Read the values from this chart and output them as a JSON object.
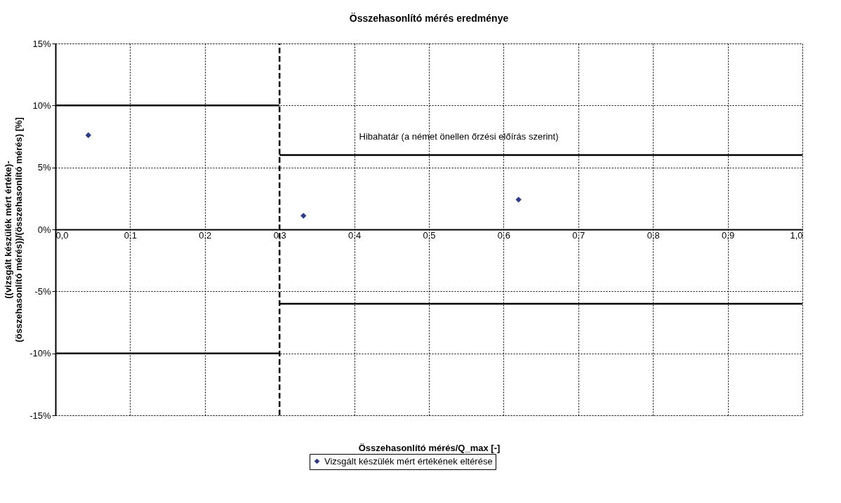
{
  "chart_data": {
    "type": "scatter",
    "title": "Összehasonlító mérés eredménye",
    "xlabel": "Összehasonlító mérés/Q_max [-]",
    "ylabel": "((vizsgált készülék mért értéke)-\n(összehasonlító mérés))/(összehasonlító mérés) [%]",
    "xlim": [
      0,
      1
    ],
    "xticks": [
      {
        "value": 0,
        "label": "0,0"
      },
      {
        "value": 0.1,
        "label": "0,1"
      },
      {
        "value": 0.2,
        "label": "0,2"
      },
      {
        "value": 0.3,
        "label": "0,3"
      },
      {
        "value": 0.4,
        "label": "0,4"
      },
      {
        "value": 0.5,
        "label": "0,5"
      },
      {
        "value": 0.6,
        "label": "0,6"
      },
      {
        "value": 0.7,
        "label": "0,7"
      },
      {
        "value": 0.8,
        "label": "0,8"
      },
      {
        "value": 0.9,
        "label": "0,9"
      },
      {
        "value": 1,
        "label": "1,0"
      }
    ],
    "ylim": [
      -15,
      15
    ],
    "yticks": [
      {
        "value": -15,
        "label": "-15%"
      },
      {
        "value": -10,
        "label": "-10%"
      },
      {
        "value": -5,
        "label": "-5%"
      },
      {
        "value": 0,
        "label": "0%"
      },
      {
        "value": 5,
        "label": "5%"
      },
      {
        "value": 10,
        "label": "10%"
      },
      {
        "value": 15,
        "label": "15%"
      }
    ],
    "grid": true,
    "legend": "bottom",
    "marker": "diamond",
    "series": [
      {
        "name": "Vizsgált készülék mért értékének eltérése",
        "color": "#2e3a8c",
        "x": [
          0.044,
          0.332,
          0.62
        ],
        "values": [
          7.6,
          1.1,
          2.4
        ]
      },
      {
        "type": "line",
        "marker": "none",
        "color": "#000000",
        "x": [
          0,
          0.3
        ],
        "values": [
          10,
          10
        ]
      },
      {
        "type": "line",
        "marker": "none",
        "color": "#000000",
        "x": [
          0.3,
          1
        ],
        "values": [
          6,
          6
        ]
      },
      {
        "type": "line",
        "marker": "none",
        "color": "#000000",
        "x": [
          0,
          0.3
        ],
        "values": [
          -10,
          -10
        ]
      },
      {
        "type": "line",
        "marker": "none",
        "color": "#000000",
        "x": [
          0.3,
          1
        ],
        "values": [
          -6,
          -6
        ]
      }
    ],
    "ref_lines": [
      {
        "axis": "x",
        "value": 0.3,
        "color": "#000000",
        "line_style": "dashed"
      }
    ],
    "annotations": [
      "Hibahatár (a német önellen őrzési előírás szerint)"
    ]
  }
}
